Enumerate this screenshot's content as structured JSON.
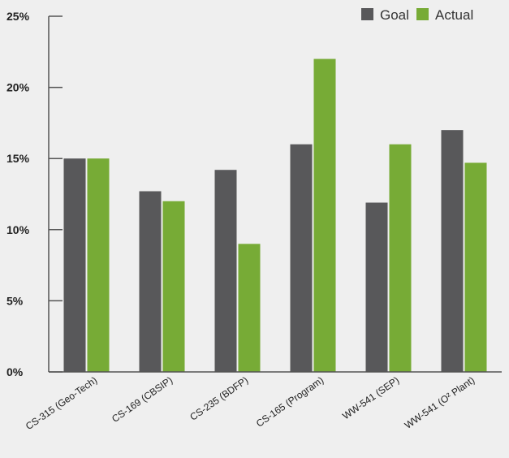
{
  "chart_data": {
    "type": "bar",
    "categories": [
      "CS-315 (Geo-Tech)",
      "CS-169 (CBSIP)",
      "CS-235 (BDFP)",
      "CS-165 (Program)",
      "WW-541 (SEP)",
      "WW-541 (O² Plant)"
    ],
    "series": [
      {
        "name": "Goal",
        "color": "#58585a",
        "values": [
          15,
          12.7,
          14.2,
          16,
          11.9,
          17
        ]
      },
      {
        "name": "Actual",
        "color": "#77ab36",
        "values": [
          15,
          12,
          9,
          22,
          16,
          14.7
        ]
      }
    ],
    "yticks": [
      "0%",
      "5%",
      "10%",
      "15%",
      "20%",
      "25%"
    ],
    "ylim": [
      0,
      25
    ],
    "title": "",
    "xlabel": "",
    "ylabel": "",
    "grid": false,
    "legend_position": "top-right"
  }
}
